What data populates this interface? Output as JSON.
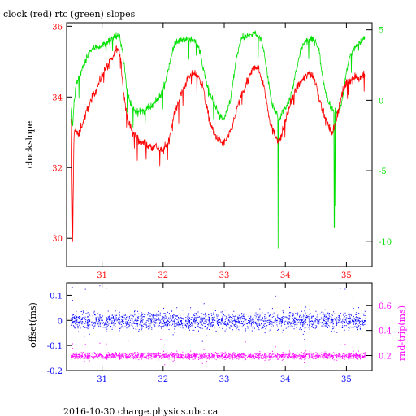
{
  "title": "clock (red) rtc (green) slopes",
  "footer": "2016-10-30 charge.physics.ubc.ca",
  "colors": {
    "red": "#ff0000",
    "green": "#00e000",
    "blue": "#0000ff",
    "magenta": "#ff00ff",
    "axis": "#000000"
  },
  "chart_data": [
    {
      "type": "line",
      "title": "clock (red) rtc (green) slopes",
      "ylabel": "clockslope",
      "ylabel_right": "",
      "xlim": [
        30.42,
        35.42
      ],
      "ylim": [
        29.2,
        36.1
      ],
      "ylim_right": [
        -11.8,
        5.5
      ],
      "x_ticks": [
        "31",
        "32",
        "33",
        "34",
        "35"
      ],
      "y_ticks": [
        "30",
        "32",
        "34",
        "36"
      ],
      "y_ticks_right": [
        "-10",
        "-5",
        "0",
        "5"
      ],
      "series": [
        {
          "name": "clock (red)",
          "axis": "left",
          "color": "#ff0000",
          "x": [
            30.5,
            30.52,
            30.54,
            30.56,
            30.58,
            30.62,
            30.66,
            30.7,
            30.75,
            30.8,
            30.85,
            30.9,
            30.95,
            31.0,
            31.05,
            31.1,
            31.15,
            31.2,
            31.25,
            31.3,
            31.35,
            31.4,
            31.45,
            31.5,
            31.55,
            31.6,
            31.65,
            31.7,
            31.75,
            31.8,
            31.85,
            31.9,
            31.95,
            32.0,
            32.05,
            32.1,
            32.15,
            32.2,
            32.25,
            32.3,
            32.35,
            32.4,
            32.45,
            32.5,
            32.55,
            32.6,
            32.65,
            32.7,
            32.75,
            32.8,
            32.85,
            32.9,
            32.95,
            33.0,
            33.05,
            33.1,
            33.15,
            33.2,
            33.25,
            33.3,
            33.35,
            33.4,
            33.45,
            33.5,
            33.55,
            33.6,
            33.65,
            33.7,
            33.75,
            33.8,
            33.85,
            33.9,
            33.95,
            34.0,
            34.05,
            34.1,
            34.15,
            34.2,
            34.25,
            34.3,
            34.35,
            34.4,
            34.45,
            34.5,
            34.55,
            34.6,
            34.65,
            34.7,
            34.75,
            34.8,
            34.85,
            34.9,
            34.95,
            35.0,
            35.05,
            35.1,
            35.15,
            35.2,
            35.25,
            35.3
          ],
          "values": [
            33.3,
            30.0,
            32.8,
            33.2,
            33.0,
            32.9,
            33.2,
            33.3,
            33.6,
            33.8,
            34.0,
            34.2,
            34.4,
            34.6,
            34.8,
            34.9,
            35.0,
            35.2,
            35.4,
            35.2,
            34.2,
            33.5,
            33.2,
            33.0,
            32.9,
            32.8,
            32.7,
            32.7,
            32.6,
            32.6,
            32.6,
            32.6,
            32.5,
            32.5,
            32.6,
            32.8,
            33.3,
            33.6,
            33.9,
            34.1,
            34.3,
            34.5,
            34.6,
            34.7,
            34.6,
            34.5,
            34.3,
            33.8,
            33.4,
            33.1,
            32.9,
            32.8,
            32.7,
            32.7,
            32.8,
            33.0,
            33.3,
            33.6,
            33.9,
            34.1,
            34.3,
            34.5,
            34.7,
            34.9,
            34.8,
            34.6,
            34.3,
            33.8,
            33.3,
            33.0,
            32.9,
            32.7,
            33.0,
            33.3,
            33.6,
            33.9,
            34.1,
            34.3,
            34.4,
            34.5,
            34.6,
            34.7,
            34.6,
            34.4,
            34.0,
            33.7,
            33.4,
            33.2,
            33.0,
            33.1,
            33.5,
            33.9,
            34.2,
            34.4,
            34.5,
            34.5,
            34.6,
            34.5,
            34.6,
            34.6
          ]
        },
        {
          "name": "rtc (green)",
          "axis": "right",
          "color": "#00e000",
          "x": [
            30.5,
            30.52,
            30.54,
            30.56,
            30.58,
            30.62,
            30.66,
            30.7,
            30.75,
            30.8,
            30.85,
            30.9,
            30.95,
            31.0,
            31.05,
            31.1,
            31.15,
            31.2,
            31.25,
            31.3,
            31.35,
            31.4,
            31.45,
            31.5,
            31.55,
            31.6,
            31.65,
            31.7,
            31.75,
            31.8,
            31.85,
            31.9,
            31.95,
            32.0,
            32.05,
            32.1,
            32.15,
            32.2,
            32.25,
            32.3,
            32.35,
            32.4,
            32.45,
            32.5,
            32.55,
            32.6,
            32.65,
            32.7,
            32.75,
            32.8,
            32.85,
            32.9,
            32.95,
            33.0,
            33.05,
            33.1,
            33.15,
            33.2,
            33.25,
            33.3,
            33.35,
            33.4,
            33.45,
            33.5,
            33.55,
            33.6,
            33.65,
            33.7,
            33.75,
            33.8,
            33.85,
            33.9,
            33.95,
            34.0,
            34.05,
            34.1,
            34.15,
            34.2,
            34.25,
            34.3,
            34.35,
            34.4,
            34.45,
            34.5,
            34.55,
            34.6,
            34.65,
            34.7,
            34.75,
            34.8,
            34.85,
            34.9,
            34.95,
            35.0,
            35.05,
            35.1,
            35.15,
            35.2,
            35.25,
            35.3
          ],
          "values": [
            -0.5,
            -2.0,
            -0.3,
            0.5,
            1.2,
            1.6,
            2.0,
            2.5,
            3.0,
            3.5,
            3.6,
            3.8,
            3.8,
            3.9,
            4.0,
            4.2,
            4.3,
            4.5,
            4.5,
            4.4,
            3.0,
            1.0,
            0.0,
            -0.5,
            -0.7,
            -0.8,
            -0.8,
            -0.7,
            -0.6,
            -0.5,
            -0.3,
            0.0,
            0.3,
            0.8,
            1.5,
            2.5,
            3.5,
            4.0,
            4.2,
            4.3,
            4.4,
            4.3,
            4.3,
            4.2,
            4.0,
            3.6,
            2.5,
            1.5,
            0.6,
            0.1,
            -0.3,
            -0.8,
            -1.2,
            -1.2,
            -0.8,
            0.0,
            1.5,
            3.0,
            4.0,
            4.5,
            4.5,
            4.6,
            4.6,
            4.8,
            4.5,
            4.3,
            3.5,
            2.0,
            0.5,
            -0.5,
            -0.9,
            -1.5,
            -0.8,
            -0.5,
            -0.2,
            0.5,
            1.5,
            2.5,
            3.5,
            4.0,
            4.2,
            4.3,
            4.3,
            4.2,
            3.6,
            2.0,
            0.8,
            0.0,
            -0.5,
            -0.8,
            -0.9,
            -0.5,
            0.5,
            2.0,
            3.0,
            3.5,
            3.8,
            4.0,
            4.2,
            4.5
          ]
        }
      ]
    },
    {
      "type": "scatter",
      "ylabel": "offset(ms)",
      "ylabel_right": "rnd-trip(ms)",
      "xlim": [
        30.42,
        35.42
      ],
      "ylim": [
        -0.2,
        0.15
      ],
      "ylim_right": [
        0.08,
        0.78
      ],
      "x_ticks": [
        "31",
        "32",
        "33",
        "34",
        "35"
      ],
      "y_ticks": [
        "-0.2",
        "-0.1",
        "0",
        "0.1"
      ],
      "y_ticks_right": [
        "0.2",
        "0.4",
        "0.6"
      ],
      "series": [
        {
          "name": "offset",
          "axis": "left",
          "color": "#0000ff",
          "x_range": [
            30.5,
            35.3
          ],
          "center": 0.0,
          "spread": 0.03
        },
        {
          "name": "rnd-trip",
          "axis": "right",
          "color": "#ff00ff",
          "x_range": [
            30.5,
            35.3
          ],
          "center": 0.2,
          "spread": 0.022
        }
      ]
    }
  ]
}
